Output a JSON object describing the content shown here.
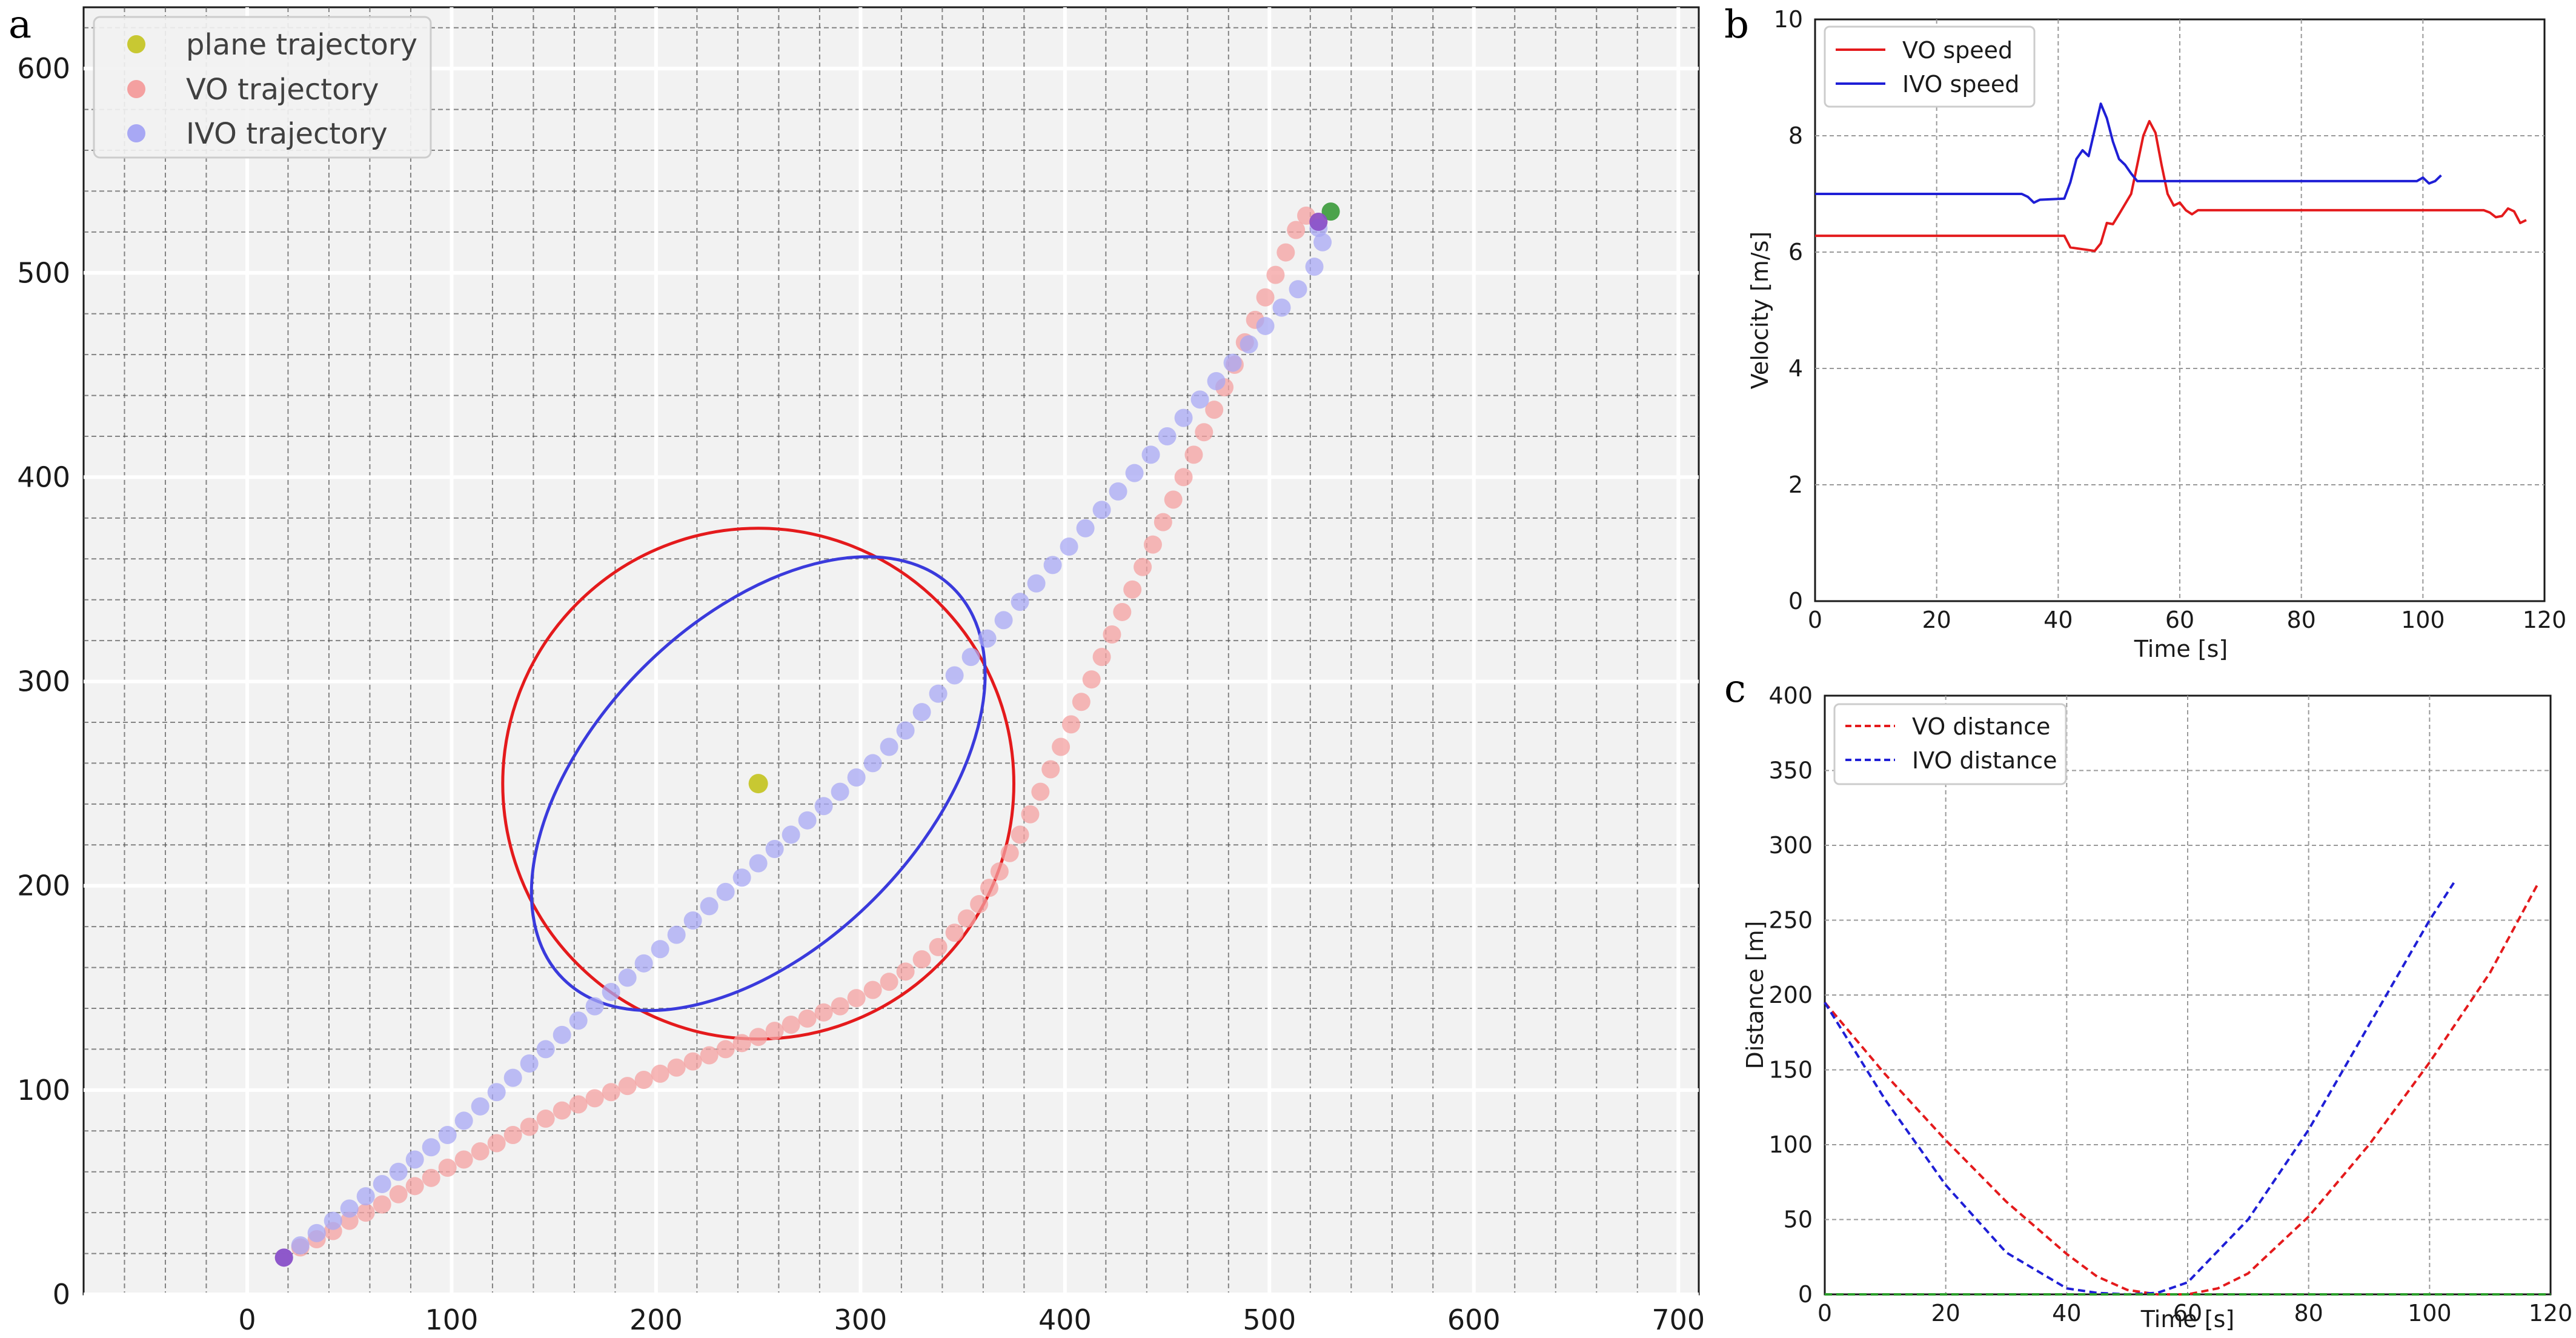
{
  "chart_data": [
    {
      "panel_label": "a",
      "type": "scatter",
      "xlim": [
        -80,
        710
      ],
      "ylim": [
        0,
        630
      ],
      "xticks": [
        0,
        100,
        200,
        300,
        400,
        500,
        600,
        700
      ],
      "yticks": [
        0,
        100,
        200,
        300,
        400,
        500,
        600
      ],
      "background": "#f2f2f2",
      "grid": true,
      "legend_position": "top-left",
      "series": [
        {
          "name": "plane trajectory",
          "color": "#c8c832",
          "points": [
            [
              250,
              250
            ]
          ]
        },
        {
          "name": "VO trajectory",
          "color": "#f4a0a0",
          "points": [
            [
              18,
              18
            ],
            [
              26,
              23
            ],
            [
              34,
              27
            ],
            [
              42,
              31
            ],
            [
              50,
              36
            ],
            [
              58,
              40
            ],
            [
              66,
              44
            ],
            [
              74,
              49
            ],
            [
              82,
              53
            ],
            [
              90,
              57
            ],
            [
              98,
              62
            ],
            [
              106,
              66
            ],
            [
              114,
              70
            ],
            [
              122,
              74
            ],
            [
              130,
              78
            ],
            [
              138,
              82
            ],
            [
              146,
              86
            ],
            [
              154,
              90
            ],
            [
              162,
              93
            ],
            [
              170,
              96
            ],
            [
              178,
              99
            ],
            [
              186,
              102
            ],
            [
              194,
              105
            ],
            [
              202,
              108
            ],
            [
              210,
              111
            ],
            [
              218,
              114
            ],
            [
              226,
              117
            ],
            [
              234,
              120
            ],
            [
              242,
              123
            ],
            [
              250,
              126
            ],
            [
              258,
              129
            ],
            [
              266,
              132
            ],
            [
              274,
              135
            ],
            [
              282,
              138
            ],
            [
              290,
              141
            ],
            [
              298,
              145
            ],
            [
              306,
              149
            ],
            [
              314,
              153
            ],
            [
              322,
              158
            ],
            [
              330,
              164
            ],
            [
              338,
              170
            ],
            [
              346,
              177
            ],
            [
              352,
              184
            ],
            [
              358,
              191
            ],
            [
              363,
              199
            ],
            [
              368,
              207
            ],
            [
              373,
              216
            ],
            [
              378,
              225
            ],
            [
              383,
              235
            ],
            [
              388,
              246
            ],
            [
              393,
              257
            ],
            [
              398,
              268
            ],
            [
              403,
              279
            ],
            [
              408,
              290
            ],
            [
              413,
              301
            ],
            [
              418,
              312
            ],
            [
              423,
              323
            ],
            [
              428,
              334
            ],
            [
              433,
              345
            ],
            [
              438,
              356
            ],
            [
              443,
              367
            ],
            [
              448,
              378
            ],
            [
              453,
              389
            ],
            [
              458,
              400
            ],
            [
              463,
              411
            ],
            [
              468,
              422
            ],
            [
              473,
              433
            ],
            [
              478,
              444
            ],
            [
              483,
              455
            ],
            [
              488,
              466
            ],
            [
              493,
              477
            ],
            [
              498,
              488
            ],
            [
              503,
              499
            ],
            [
              508,
              510
            ],
            [
              513,
              521
            ],
            [
              518,
              528
            ],
            [
              524,
              525
            ]
          ]
        },
        {
          "name": "IVO trajectory",
          "color": "#a8a8f4",
          "points": [
            [
              18,
              18
            ],
            [
              26,
              24
            ],
            [
              34,
              30
            ],
            [
              42,
              36
            ],
            [
              50,
              42
            ],
            [
              58,
              48
            ],
            [
              66,
              54
            ],
            [
              74,
              60
            ],
            [
              82,
              66
            ],
            [
              90,
              72
            ],
            [
              98,
              78
            ],
            [
              106,
              85
            ],
            [
              114,
              92
            ],
            [
              122,
              99
            ],
            [
              130,
              106
            ],
            [
              138,
              113
            ],
            [
              146,
              120
            ],
            [
              154,
              127
            ],
            [
              162,
              134
            ],
            [
              170,
              141
            ],
            [
              178,
              148
            ],
            [
              186,
              155
            ],
            [
              194,
              162
            ],
            [
              202,
              169
            ],
            [
              210,
              176
            ],
            [
              218,
              183
            ],
            [
              226,
              190
            ],
            [
              234,
              197
            ],
            [
              242,
              204
            ],
            [
              250,
              211
            ],
            [
              258,
              218
            ],
            [
              266,
              225
            ],
            [
              274,
              232
            ],
            [
              282,
              239
            ],
            [
              290,
              246
            ],
            [
              298,
              253
            ],
            [
              306,
              260
            ],
            [
              314,
              268
            ],
            [
              322,
              276
            ],
            [
              330,
              285
            ],
            [
              338,
              294
            ],
            [
              346,
              303
            ],
            [
              354,
              312
            ],
            [
              362,
              321
            ],
            [
              370,
              330
            ],
            [
              378,
              339
            ],
            [
              386,
              348
            ],
            [
              394,
              357
            ],
            [
              402,
              366
            ],
            [
              410,
              375
            ],
            [
              418,
              384
            ],
            [
              426,
              393
            ],
            [
              434,
              402
            ],
            [
              442,
              411
            ],
            [
              450,
              420
            ],
            [
              458,
              429
            ],
            [
              466,
              438
            ],
            [
              474,
              447
            ],
            [
              482,
              456
            ],
            [
              490,
              465
            ],
            [
              498,
              474
            ],
            [
              506,
              483
            ],
            [
              514,
              492
            ],
            [
              522,
              503
            ],
            [
              526,
              515
            ],
            [
              524,
              522
            ]
          ]
        }
      ],
      "markers": [
        {
          "label": "start",
          "color": "#8a4fc8",
          "point": [
            18,
            18
          ]
        },
        {
          "label": "goal",
          "color": "#3a9a3a",
          "point": [
            530,
            530
          ]
        },
        {
          "label": "end",
          "color": "#8a4fc8",
          "point": [
            524,
            525
          ]
        }
      ],
      "shapes": [
        {
          "kind": "circle",
          "color": "#e41a1c",
          "center": [
            250,
            250
          ],
          "radius": 125
        },
        {
          "kind": "ellipse",
          "color": "#3a3adc",
          "center": [
            250,
            250
          ],
          "rx": 135,
          "ry": 80,
          "rotation_deg": 45
        }
      ]
    },
    {
      "panel_label": "b",
      "type": "line",
      "xlabel": "Time [s]",
      "ylabel": "Velocity [m/s]",
      "xlim": [
        0,
        120
      ],
      "ylim": [
        0,
        10
      ],
      "xticks": [
        0,
        20,
        40,
        60,
        80,
        100,
        120
      ],
      "yticks": [
        0,
        2,
        4,
        6,
        8,
        10
      ],
      "grid": true,
      "legend_position": "top-left",
      "series": [
        {
          "name": "VO speed",
          "color": "#e41a1c",
          "dash": "solid",
          "points": [
            [
              0,
              6.28
            ],
            [
              41,
              6.28
            ],
            [
              42,
              6.08
            ],
            [
              44,
              6.05
            ],
            [
              46,
              6.02
            ],
            [
              47,
              6.15
            ],
            [
              48,
              6.5
            ],
            [
              49,
              6.48
            ],
            [
              50,
              6.65
            ],
            [
              52,
              7.0
            ],
            [
              53,
              7.5
            ],
            [
              54,
              8.0
            ],
            [
              55,
              8.25
            ],
            [
              56,
              8.05
            ],
            [
              57,
              7.5
            ],
            [
              58,
              7.0
            ],
            [
              59,
              6.8
            ],
            [
              60,
              6.85
            ],
            [
              61,
              6.72
            ],
            [
              62,
              6.65
            ],
            [
              63,
              6.72
            ],
            [
              80,
              6.72
            ],
            [
              110,
              6.72
            ],
            [
              111,
              6.68
            ],
            [
              112,
              6.6
            ],
            [
              113,
              6.62
            ],
            [
              114,
              6.75
            ],
            [
              115,
              6.7
            ],
            [
              116,
              6.5
            ],
            [
              117,
              6.55
            ]
          ]
        },
        {
          "name": "IVO speed",
          "color": "#1f1fd6",
          "dash": "solid",
          "points": [
            [
              0,
              7.0
            ],
            [
              34,
              7.0
            ],
            [
              35,
              6.95
            ],
            [
              36,
              6.85
            ],
            [
              37,
              6.9
            ],
            [
              41,
              6.92
            ],
            [
              42,
              7.2
            ],
            [
              43,
              7.6
            ],
            [
              44,
              7.75
            ],
            [
              45,
              7.65
            ],
            [
              46,
              8.1
            ],
            [
              47,
              8.55
            ],
            [
              48,
              8.3
            ],
            [
              49,
              7.9
            ],
            [
              50,
              7.6
            ],
            [
              51,
              7.5
            ],
            [
              52,
              7.35
            ],
            [
              53,
              7.22
            ],
            [
              70,
              7.22
            ],
            [
              99,
              7.22
            ],
            [
              100,
              7.28
            ],
            [
              101,
              7.18
            ],
            [
              102,
              7.22
            ],
            [
              103,
              7.32
            ]
          ]
        }
      ]
    },
    {
      "panel_label": "c",
      "type": "line",
      "xlabel": "Time [s]",
      "ylabel": "Distance [m]",
      "xlim": [
        0,
        120
      ],
      "ylim": [
        0,
        400
      ],
      "xticks": [
        0,
        20,
        40,
        60,
        80,
        100,
        120
      ],
      "yticks": [
        0,
        50,
        100,
        150,
        200,
        250,
        300,
        350,
        400
      ],
      "grid": true,
      "legend_position": "top-left",
      "series": [
        {
          "name": "VO distance",
          "color": "#e41a1c",
          "dash": "dashed",
          "points": [
            [
              0,
              195
            ],
            [
              10,
              147
            ],
            [
              20,
              103
            ],
            [
              30,
              62
            ],
            [
              40,
              27
            ],
            [
              45,
              12
            ],
            [
              50,
              3
            ],
            [
              55,
              0
            ],
            [
              60,
              0
            ],
            [
              65,
              4
            ],
            [
              70,
              14
            ],
            [
              80,
              52
            ],
            [
              90,
              100
            ],
            [
              100,
              155
            ],
            [
              110,
              215
            ],
            [
              118,
              275
            ]
          ]
        },
        {
          "name": "IVO distance",
          "color": "#1f1fd6",
          "dash": "dashed",
          "points": [
            [
              0,
              195
            ],
            [
              10,
              130
            ],
            [
              20,
              73
            ],
            [
              30,
              28
            ],
            [
              40,
              4
            ],
            [
              45,
              1
            ],
            [
              50,
              0
            ],
            [
              55,
              1
            ],
            [
              60,
              8
            ],
            [
              70,
              50
            ],
            [
              80,
              110
            ],
            [
              90,
              180
            ],
            [
              100,
              250
            ],
            [
              104,
              275
            ]
          ]
        },
        {
          "name": "",
          "color": "#2ca02c",
          "dash": "dashed",
          "points": [
            [
              0,
              0
            ],
            [
              120,
              0
            ]
          ]
        }
      ]
    }
  ]
}
